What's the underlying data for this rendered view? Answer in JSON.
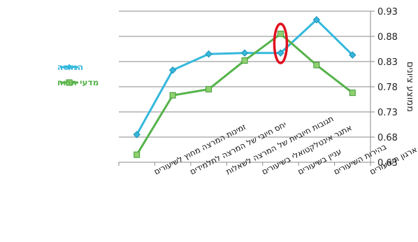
{
  "chart_data": {
    "type": "line",
    "title": "",
    "xlabel": "",
    "ylabel": "ממוצע ציונים",
    "ylim": [
      0.63,
      0.93
    ],
    "y_ticks": [
      "0.63",
      "0.68",
      "0.73",
      "0.78",
      "0.83",
      "0.88",
      "0.93"
    ],
    "grid": true,
    "legend_position": "left",
    "categories": [
      "זמינות המרצה מחוץ לשיעורים",
      "יחס חיובי של המרצה לתלמידים",
      "תגובות חיוביות של המרצה לשאלות",
      "אתגר אינטלקטואלי בשיעורים",
      "עניין בשיעורים",
      "בהירות השיעורים",
      "ארגון השיעורים"
    ],
    "series": [
      {
        "name": "הנדסה",
        "color": "#35b8dc",
        "marker": "diamond",
        "values": [
          0.685,
          0.813,
          0.845,
          0.847,
          0.847,
          0.913,
          0.843
        ]
      },
      {
        "name": "מדעי הרוח",
        "color": "#55b34a",
        "marker": "square",
        "values": [
          0.645,
          0.763,
          0.775,
          0.832,
          0.885,
          0.823,
          0.768
        ]
      }
    ],
    "annotations": [
      {
        "type": "ellipse",
        "category_index": 4,
        "color": "#e0101e"
      }
    ]
  }
}
